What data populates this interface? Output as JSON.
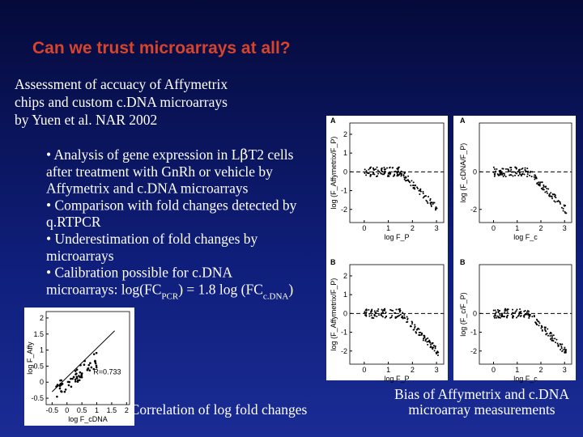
{
  "title": "Can we trust microarrays at all?",
  "intro": [
    "Assessment of accuacy of Affymetrix",
    "chips and custom c.DNA microarrays",
    "by Yuen et al. NAR 2002"
  ],
  "bullets": [
    [
      {
        "t": "• Analysis of gene expression in L"
      },
      {
        "t": "β",
        "sym": true
      },
      {
        "t": "T2 cells"
      }
    ],
    [
      {
        "t": "after treatment with GnRh or vehicle by"
      }
    ],
    [
      {
        "t": "Affymetrix and c.DNA microarrays"
      }
    ],
    [
      {
        "t": "• Comparison with fold changes detected by"
      }
    ],
    [
      {
        "t": "q.RTPCR"
      }
    ],
    [
      {
        "t": "• Underestimation of fold changes by"
      }
    ],
    [
      {
        "t": "microarrays"
      }
    ],
    [
      {
        "t": "• Calibration possible for c.DNA"
      }
    ],
    [
      {
        "t": "microarrays: log(FC"
      },
      {
        "t": "PCR",
        "sub": true
      },
      {
        "t": ") = 1.8 log (FC"
      },
      {
        "t": "c.DNA",
        "sub": true
      },
      {
        "t": ")"
      }
    ]
  ],
  "captions": {
    "correlation": "Correlation of log fold changes",
    "bias": [
      "Bias of Affymetrix and c.DNA",
      "microarray measurements"
    ]
  },
  "figures": [
    {
      "label": "A",
      "ylabel": "log (F_Affymetrix/F_P)",
      "xlabel": "log F_P",
      "xlim": [
        -0.6,
        3.3
      ],
      "ylim": [
        -2.7,
        2.6
      ],
      "yticks": [
        2,
        1,
        0,
        -1,
        -2
      ],
      "xticks": [
        0,
        1,
        2,
        3
      ]
    },
    {
      "label": "A",
      "ylabel": "log (F_cDNA/F_P)",
      "xlabel": "log F_c",
      "xlim": [
        -0.6,
        3.3
      ],
      "ylim": [
        -2.7,
        2.6
      ],
      "yticks": [
        0,
        -2
      ],
      "xticks": [
        0,
        1,
        2,
        3
      ]
    },
    {
      "label": "B",
      "ylabel": "log (F_Affymetrix/F_P)",
      "xlabel": "log F_P",
      "xlim": [
        -0.6,
        3.3
      ],
      "ylim": [
        -2.7,
        2.6
      ],
      "yticks": [
        2,
        1,
        0,
        -1,
        -2
      ],
      "xticks": [
        0,
        1,
        2,
        3
      ]
    },
    {
      "label": "B",
      "ylabel": "log (F_c/F_P)",
      "xlabel": "log F_c",
      "xlim": [
        -0.6,
        3.3
      ],
      "ylim": [
        -2.7,
        2.6
      ],
      "yticks": [
        0,
        -1,
        -2
      ],
      "xticks": [
        0,
        1,
        2,
        3
      ]
    }
  ],
  "correlation_plot": {
    "ylabel": "log F_Affy",
    "xlabel": "log F_cDNA",
    "annotation": "R=0.733",
    "xlim": [
      -0.7,
      2.1
    ],
    "ylim": [
      -0.7,
      2.2
    ],
    "yticks": [
      2,
      1.5,
      1,
      0.5,
      0,
      -0.5
    ],
    "xticks": [
      -0.5,
      0,
      0.5,
      1,
      1.5,
      2
    ]
  }
}
